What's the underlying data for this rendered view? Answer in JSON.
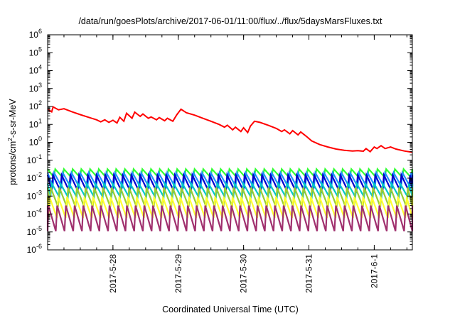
{
  "chart_data": {
    "type": "line",
    "title": "/data/run/goesPlots/archive/2017-06-01/11:00/flux/../flux/5daysMarsFluxes.txt",
    "xlabel": "Coordinated Universal Time (UTC)",
    "ylabel_parts": [
      "protons/cm",
      "2",
      "-s-sr-MeV"
    ],
    "y_scale": "log",
    "ylim_exponents": [
      -6,
      6
    ],
    "y_tick_exponents": [
      -6,
      -5,
      -4,
      -3,
      -2,
      -1,
      0,
      1,
      2,
      3,
      4,
      5,
      6
    ],
    "y_tick_base": "10",
    "xlim": [
      "2017-05-27 00:00",
      "2017-06-01 14:00"
    ],
    "x_ticks": [
      {
        "date": "2017-05-28",
        "label": "2017-5-28"
      },
      {
        "date": "2017-05-29",
        "label": "2017-5-29"
      },
      {
        "date": "2017-05-30",
        "label": "2017-5-30"
      },
      {
        "date": "2017-05-31",
        "label": "2017-5-31"
      },
      {
        "date": "2017-06-01",
        "label": "2017-6-1"
      }
    ],
    "grid": false,
    "legend": "none",
    "series": [
      {
        "color": "#ff0000",
        "style": "irregular decay with jumps",
        "points": [
          [
            "2017-05-27 00:00",
            70
          ],
          [
            "2017-05-27 01:30",
            50
          ],
          [
            "2017-05-27 02:00",
            95
          ],
          [
            "2017-05-27 04:00",
            65
          ],
          [
            "2017-05-27 06:00",
            75
          ],
          [
            "2017-05-27 09:00",
            50
          ],
          [
            "2017-05-27 12:00",
            35
          ],
          [
            "2017-05-27 15:00",
            25
          ],
          [
            "2017-05-27 18:00",
            18
          ],
          [
            "2017-05-27 19:30",
            14
          ],
          [
            "2017-05-27 21:00",
            18
          ],
          [
            "2017-05-27 22:30",
            13
          ],
          [
            "2017-05-28 00:00",
            17
          ],
          [
            "2017-05-28 01:30",
            12
          ],
          [
            "2017-05-28 02:30",
            25
          ],
          [
            "2017-05-28 04:00",
            15
          ],
          [
            "2017-05-28 05:00",
            42
          ],
          [
            "2017-05-28 07:00",
            22
          ],
          [
            "2017-05-28 08:00",
            48
          ],
          [
            "2017-05-28 10:00",
            28
          ],
          [
            "2017-05-28 11:00",
            38
          ],
          [
            "2017-05-28 13:00",
            22
          ],
          [
            "2017-05-28 14:00",
            26
          ],
          [
            "2017-05-28 16:00",
            18
          ],
          [
            "2017-05-28 17:00",
            24
          ],
          [
            "2017-05-28 19:00",
            16
          ],
          [
            "2017-05-28 20:00",
            22
          ],
          [
            "2017-05-28 22:00",
            15
          ],
          [
            "2017-05-28 23:30",
            35
          ],
          [
            "2017-05-29 01:00",
            70
          ],
          [
            "2017-05-29 03:00",
            45
          ],
          [
            "2017-05-29 06:00",
            33
          ],
          [
            "2017-05-29 09:00",
            22
          ],
          [
            "2017-05-29 12:00",
            15
          ],
          [
            "2017-05-29 15:00",
            10
          ],
          [
            "2017-05-29 17:00",
            7
          ],
          [
            "2017-05-29 18:00",
            9
          ],
          [
            "2017-05-29 20:00",
            5
          ],
          [
            "2017-05-29 21:00",
            7
          ],
          [
            "2017-05-29 23:00",
            4
          ],
          [
            "2017-05-30 00:00",
            6.5
          ],
          [
            "2017-05-30 01:30",
            3.5
          ],
          [
            "2017-05-30 02:30",
            8
          ],
          [
            "2017-05-30 04:00",
            15
          ],
          [
            "2017-05-30 06:00",
            13
          ],
          [
            "2017-05-30 09:00",
            9
          ],
          [
            "2017-05-30 12:00",
            6
          ],
          [
            "2017-05-30 14:00",
            4
          ],
          [
            "2017-05-30 15:00",
            5
          ],
          [
            "2017-05-30 17:00",
            3
          ],
          [
            "2017-05-30 18:00",
            4.5
          ],
          [
            "2017-05-30 20:00",
            2.6
          ],
          [
            "2017-05-30 21:00",
            3.8
          ],
          [
            "2017-05-30 23:00",
            2.2
          ],
          [
            "2017-05-31 01:00",
            1.2
          ],
          [
            "2017-05-31 04:00",
            0.75
          ],
          [
            "2017-05-31 07:00",
            0.55
          ],
          [
            "2017-05-31 10:00",
            0.42
          ],
          [
            "2017-05-31 13:00",
            0.36
          ],
          [
            "2017-05-31 16:00",
            0.33
          ],
          [
            "2017-05-31 18:00",
            0.34
          ],
          [
            "2017-05-31 20:00",
            0.32
          ],
          [
            "2017-05-31 21:00",
            0.45
          ],
          [
            "2017-05-31 22:30",
            0.3
          ],
          [
            "2017-06-01 00:00",
            0.55
          ],
          [
            "2017-06-01 01:00",
            0.45
          ],
          [
            "2017-06-01 02:30",
            0.65
          ],
          [
            "2017-06-01 04:00",
            0.45
          ],
          [
            "2017-06-01 06:00",
            0.55
          ],
          [
            "2017-06-01 08:00",
            0.42
          ],
          [
            "2017-06-01 11:00",
            0.33
          ],
          [
            "2017-06-01 14:00",
            0.28
          ]
        ]
      },
      {
        "color": "#33ff33",
        "style": "sawtooth",
        "period_hours": 3.2,
        "peak": 0.032,
        "trough": 0.011
      },
      {
        "color": "#1e90ff",
        "style": "sawtooth",
        "period_hours": 3.2,
        "peak": 0.02,
        "trough": 0.0035
      },
      {
        "color": "#0000cc",
        "style": "sawtooth",
        "period_hours": 3.2,
        "peak": 0.015,
        "trough": 0.002
      },
      {
        "color": "#00c8c8",
        "style": "sawtooth",
        "period_hours": 3.2,
        "peak": 0.005,
        "trough": 0.0009
      },
      {
        "color": "#9acd32",
        "style": "sawtooth",
        "period_hours": 3.2,
        "peak": 0.003,
        "trough": 0.00025
      },
      {
        "color": "#ffff33",
        "style": "sawtooth",
        "period_hours": 3.2,
        "peak": 0.0009,
        "trough": 6e-05
      },
      {
        "color": "#a0306e",
        "style": "sawtooth",
        "period_hours": 3.2,
        "peak": 0.0003,
        "trough": 1.1e-05
      }
    ]
  }
}
